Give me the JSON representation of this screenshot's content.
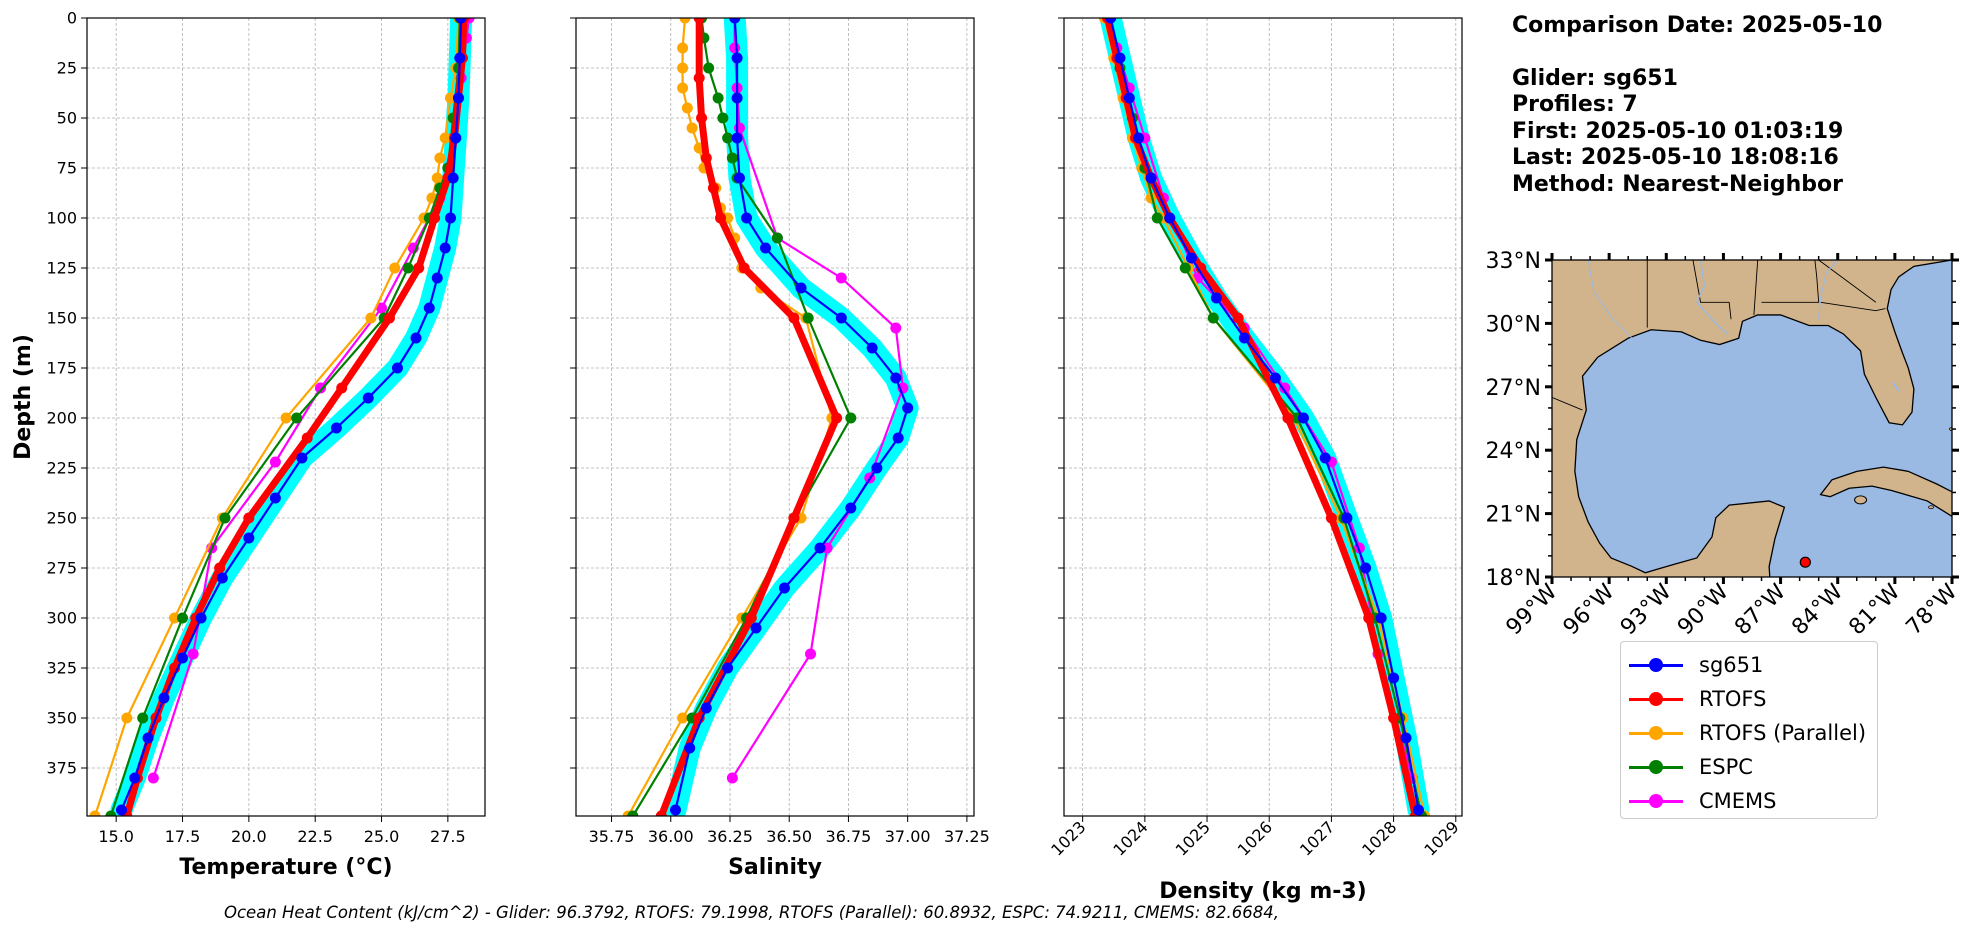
{
  "chart_data": [
    {
      "type": "line",
      "xlabel": "Temperature (°C)",
      "ylabel": "Depth (m)",
      "xlim": [
        13.9,
        28.9
      ],
      "ylim": [
        399,
        0
      ],
      "y_inverted": true,
      "grid": true,
      "xticks": [
        "15.0",
        "17.5",
        "20.0",
        "22.5",
        "25.0",
        "27.5"
      ],
      "yticks": [
        "0",
        "25",
        "50",
        "75",
        "100",
        "125",
        "150",
        "175",
        "200",
        "225",
        "250",
        "275",
        "300",
        "325",
        "350",
        "375"
      ],
      "series": [
        {
          "name": "sg651",
          "x": [
            28.0,
            27.95,
            27.9,
            27.8,
            27.7,
            27.6,
            27.4,
            27.1,
            26.8,
            26.3,
            25.6,
            24.5,
            23.3,
            22.0,
            21.0,
            20.0,
            19.0,
            18.2,
            17.5,
            16.8,
            16.2,
            15.7,
            15.2
          ],
          "y": [
            0,
            20,
            40,
            60,
            80,
            100,
            115,
            130,
            145,
            160,
            175,
            190,
            205,
            220,
            240,
            260,
            280,
            300,
            320,
            340,
            360,
            380,
            396
          ]
        },
        {
          "name": "RTOFS",
          "x": [
            28.1,
            28.05,
            27.9,
            27.75,
            27.5,
            27.0,
            26.4,
            25.3,
            23.5,
            22.2,
            20.0,
            18.9,
            18.0,
            17.2,
            16.5,
            15.8,
            15.4
          ],
          "y": [
            0,
            20,
            40,
            60,
            80,
            100,
            125,
            150,
            185,
            210,
            250,
            275,
            300,
            325,
            350,
            380,
            399
          ]
        },
        {
          "name": "RTOFS (Parallel)",
          "x": [
            27.9,
            27.8,
            27.6,
            27.4,
            27.2,
            27.1,
            26.9,
            26.6,
            25.5,
            24.6,
            21.4,
            19.0,
            17.2,
            15.4,
            14.2
          ],
          "y": [
            0,
            25,
            40,
            60,
            70,
            80,
            90,
            100,
            125,
            150,
            200,
            250,
            300,
            350,
            399
          ]
        },
        {
          "name": "ESPC",
          "x": [
            27.95,
            27.9,
            27.7,
            27.5,
            27.2,
            26.8,
            26.0,
            25.1,
            21.8,
            19.1,
            17.5,
            16.0,
            14.8
          ],
          "y": [
            0,
            25,
            50,
            75,
            85,
            100,
            125,
            150,
            200,
            250,
            300,
            350,
            399
          ]
        },
        {
          "name": "CMEMS",
          "x": [
            28.3,
            28.2,
            28.0,
            27.7,
            27.2,
            26.2,
            25.0,
            22.7,
            21.0,
            18.6,
            17.9,
            16.4
          ],
          "y": [
            0,
            10,
            30,
            60,
            90,
            115,
            145,
            185,
            222,
            265,
            318,
            380
          ]
        }
      ]
    },
    {
      "type": "line",
      "xlabel": "Salinity",
      "ylabel": "",
      "xlim": [
        35.6,
        37.28
      ],
      "ylim": [
        399,
        0
      ],
      "y_inverted": true,
      "grid": true,
      "xticks": [
        "35.75",
        "36.00",
        "36.25",
        "36.50",
        "36.75",
        "37.00",
        "37.25"
      ],
      "series": [
        {
          "name": "sg651",
          "x": [
            36.27,
            36.28,
            36.28,
            36.28,
            36.29,
            36.32,
            36.4,
            36.55,
            36.72,
            36.85,
            36.95,
            37.0,
            36.96,
            36.87,
            36.76,
            36.63,
            36.48,
            36.36,
            36.24,
            36.15,
            36.08,
            36.02
          ],
          "y": [
            0,
            20,
            40,
            60,
            80,
            100,
            115,
            135,
            150,
            165,
            180,
            195,
            210,
            225,
            245,
            265,
            285,
            305,
            325,
            345,
            365,
            396
          ]
        },
        {
          "name": "RTOFS",
          "x": [
            36.12,
            36.12,
            36.13,
            36.15,
            36.18,
            36.21,
            36.31,
            36.52,
            36.7,
            36.52,
            36.34,
            36.12,
            35.96
          ],
          "y": [
            0,
            30,
            50,
            70,
            85,
            100,
            125,
            150,
            200,
            250,
            300,
            350,
            399
          ]
        },
        {
          "name": "RTOFS (Parallel)",
          "x": [
            36.06,
            36.05,
            36.05,
            36.05,
            36.07,
            36.09,
            36.12,
            36.14,
            36.19,
            36.21,
            36.24,
            36.27,
            36.3,
            36.38,
            36.57,
            36.68,
            36.55,
            36.3,
            36.05,
            35.82
          ],
          "y": [
            0,
            15,
            25,
            35,
            45,
            55,
            65,
            75,
            85,
            95,
            100,
            110,
            125,
            135,
            150,
            200,
            250,
            300,
            350,
            399
          ]
        },
        {
          "name": "ESPC",
          "x": [
            36.13,
            36.14,
            36.16,
            36.2,
            36.22,
            36.24,
            36.26,
            36.28,
            36.45,
            36.58,
            36.76,
            36.52,
            36.32,
            36.09,
            35.84
          ],
          "y": [
            0,
            10,
            25,
            40,
            50,
            60,
            70,
            80,
            110,
            150,
            200,
            250,
            300,
            350,
            399
          ]
        },
        {
          "name": "CMEMS",
          "x": [
            36.27,
            36.27,
            36.28,
            36.29,
            36.45,
            36.72,
            36.95,
            36.98,
            36.84,
            36.66,
            36.59,
            36.26
          ],
          "y": [
            0,
            15,
            35,
            55,
            110,
            130,
            155,
            185,
            230,
            265,
            318,
            380
          ]
        }
      ]
    },
    {
      "type": "line",
      "xlabel": "Density (kg m-3)",
      "ylabel": "",
      "xlim": [
        1022.7,
        1029.1
      ],
      "ylim": [
        399,
        0
      ],
      "y_inverted": true,
      "grid": true,
      "xticks": [
        "1023",
        "1024",
        "1025",
        "1026",
        "1027",
        "1028",
        "1029"
      ],
      "series": [
        {
          "name": "sg651",
          "x": [
            1023.45,
            1023.6,
            1023.75,
            1023.9,
            1024.1,
            1024.4,
            1024.75,
            1025.15,
            1025.6,
            1026.1,
            1026.55,
            1026.9,
            1027.25,
            1027.55,
            1027.8,
            1028.0,
            1028.2,
            1028.4
          ],
          "y": [
            0,
            20,
            40,
            60,
            80,
            100,
            120,
            140,
            160,
            180,
            200,
            220,
            250,
            275,
            300,
            330,
            360,
            396
          ]
        },
        {
          "name": "RTOFS",
          "x": [
            1023.4,
            1023.55,
            1023.7,
            1023.85,
            1024.1,
            1024.4,
            1024.9,
            1025.5,
            1026.3,
            1027.0,
            1027.6,
            1028.0,
            1028.35
          ],
          "y": [
            0,
            20,
            40,
            60,
            80,
            100,
            125,
            150,
            200,
            250,
            300,
            350,
            399
          ]
        },
        {
          "name": "RTOFS (Parallel)",
          "x": [
            1023.35,
            1023.5,
            1023.65,
            1023.8,
            1023.95,
            1024.1,
            1024.3,
            1024.7,
            1025.1,
            1026.4,
            1027.15,
            1027.75,
            1028.15,
            1028.5
          ],
          "y": [
            0,
            20,
            40,
            60,
            75,
            90,
            100,
            125,
            150,
            200,
            250,
            300,
            350,
            399
          ]
        },
        {
          "name": "ESPC",
          "x": [
            1023.45,
            1023.6,
            1023.8,
            1024.0,
            1024.2,
            1024.65,
            1025.1,
            1026.45,
            1027.2,
            1027.7,
            1028.1,
            1028.45
          ],
          "y": [
            0,
            25,
            50,
            75,
            100,
            125,
            150,
            200,
            250,
            300,
            350,
            399
          ]
        },
        {
          "name": "CMEMS",
          "x": [
            1023.4,
            1023.55,
            1023.75,
            1024.0,
            1024.3,
            1024.85,
            1025.6,
            1026.25,
            1027.0,
            1027.45,
            1027.75,
            1028.3
          ],
          "y": [
            0,
            15,
            35,
            60,
            90,
            130,
            155,
            185,
            222,
            265,
            318,
            380
          ]
        }
      ]
    }
  ],
  "series_colors": {
    "sg651": "#0000ff",
    "RTOFS": "#ff0000",
    "RTOFS (Parallel)": "#ffa500",
    "ESPC": "#008000",
    "CMEMS": "#ff00ff",
    "glider_band": "#00ffff"
  },
  "info": {
    "comparison_date": "Comparison Date: 2025-05-10",
    "glider": "Glider: sg651",
    "profiles": "Profiles: 7",
    "first": "First: 2025-05-10 01:03:19",
    "last": "Last: 2025-05-10 18:08:16",
    "method": "Method: Nearest-Neighbor"
  },
  "map": {
    "lat_ticks": [
      "33°N",
      "30°N",
      "27°N",
      "24°N",
      "21°N",
      "18°N"
    ],
    "lon_ticks": [
      "99°W",
      "96°W",
      "93°W",
      "90°W",
      "87°W",
      "84°W",
      "81°W",
      "78°W"
    ],
    "extent": {
      "lon_min": -99,
      "lon_max": -78,
      "lat_min": 18,
      "lat_max": 33
    },
    "glider_location": {
      "lon": -85.7,
      "lat": 18.7
    },
    "land_color": "#d2b48c",
    "ocean_color": "#9ab9e3",
    "marker_color": "#ff0000"
  },
  "legend": {
    "entries": [
      "sg651",
      "RTOFS",
      "RTOFS (Parallel)",
      "ESPC",
      "CMEMS"
    ]
  },
  "footer": "Ocean Heat Content (kJ/cm^2) - Glider: 96.3792,  RTOFS: 79.1998,  RTOFS (Parallel): 60.8932,  ESPC: 74.9211,  CMEMS: 82.6684,"
}
